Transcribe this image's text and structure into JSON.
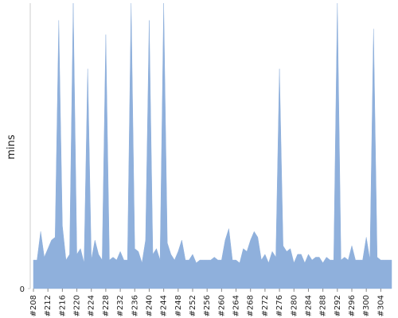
{
  "chart_data": {
    "type": "area",
    "ylabel": "mins",
    "color": "#8fb0dc",
    "categories": [
      "#208",
      null,
      null,
      null,
      "#212",
      null,
      null,
      null,
      "#216",
      null,
      null,
      null,
      "#220",
      null,
      null,
      null,
      "#224",
      null,
      null,
      null,
      "#228",
      null,
      null,
      null,
      "#232",
      null,
      null,
      null,
      "#236",
      null,
      null,
      null,
      "#240",
      null,
      null,
      null,
      "#244",
      null,
      null,
      null,
      "#248",
      null,
      null,
      null,
      "#252",
      null,
      null,
      null,
      "#256",
      null,
      null,
      null,
      "#260",
      null,
      null,
      null,
      "#264",
      null,
      null,
      null,
      "#268",
      null,
      null,
      null,
      "#272",
      null,
      null,
      null,
      "#276",
      null,
      null,
      null,
      "#280",
      null,
      null,
      null,
      "#284",
      null,
      null,
      null,
      "#288",
      null,
      null,
      null,
      "#292",
      null,
      null,
      null,
      "#296",
      null,
      null,
      null,
      "#300",
      null,
      null,
      null,
      "#304",
      null,
      null,
      null
    ],
    "values": [
      10,
      10,
      20,
      11,
      14,
      17,
      18,
      94,
      22,
      10,
      12,
      100,
      12,
      14,
      9,
      77,
      10,
      17,
      12,
      10,
      89,
      10,
      11,
      10,
      13,
      10,
      10,
      100,
      14,
      13,
      9,
      17,
      94,
      12,
      14,
      10,
      100,
      16,
      12,
      10,
      13,
      17,
      10,
      10,
      12,
      9,
      10,
      10,
      10,
      10,
      11,
      10,
      10,
      17,
      21,
      10,
      10,
      9,
      14,
      13,
      17,
      20,
      18,
      10,
      12,
      9,
      13,
      11,
      77,
      15,
      13,
      14,
      9,
      12,
      12,
      9,
      12,
      10,
      11,
      11,
      9,
      11,
      10,
      10,
      100,
      10,
      11,
      10,
      15,
      10,
      10,
      10,
      18,
      10,
      91,
      11,
      10,
      10,
      10,
      10
    ],
    "ylim": [
      0,
      100
    ],
    "yticks": [
      0
    ]
  }
}
